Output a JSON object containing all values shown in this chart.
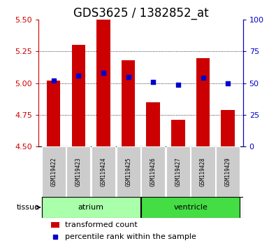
{
  "title": "GDS3625 / 1382852_at",
  "samples": [
    "GSM119422",
    "GSM119423",
    "GSM119424",
    "GSM119425",
    "GSM119426",
    "GSM119427",
    "GSM119428",
    "GSM119429"
  ],
  "bar_values": [
    5.02,
    5.3,
    5.5,
    5.18,
    4.85,
    4.71,
    5.2,
    4.79
  ],
  "blue_dot_left_values": [
    5.02,
    5.06,
    5.08,
    5.05,
    5.01,
    4.985,
    5.04,
    5.0
  ],
  "bar_baseline": 4.5,
  "ylim": [
    4.5,
    5.5
  ],
  "yticks_left": [
    4.5,
    4.75,
    5.0,
    5.25,
    5.5
  ],
  "yticks_right": [
    0,
    25,
    50,
    75,
    100
  ],
  "bar_color": "#CC0000",
  "dot_color": "#0000CC",
  "tissue_groups": [
    {
      "label": "atrium",
      "start": 0,
      "end": 4,
      "color": "#AAFFAA"
    },
    {
      "label": "ventricle",
      "start": 4,
      "end": 8,
      "color": "#44DD44"
    }
  ],
  "tissue_label": "tissue",
  "legend_bar_label": "transformed count",
  "legend_dot_label": "percentile rank within the sample",
  "background_color": "#ffffff",
  "tick_label_color_left": "#CC0000",
  "tick_label_color_right": "#0000CC",
  "bar_width": 0.55,
  "title_fontsize": 12,
  "axis_fontsize": 8,
  "legend_fontsize": 8,
  "sample_box_color": "#CCCCCC"
}
